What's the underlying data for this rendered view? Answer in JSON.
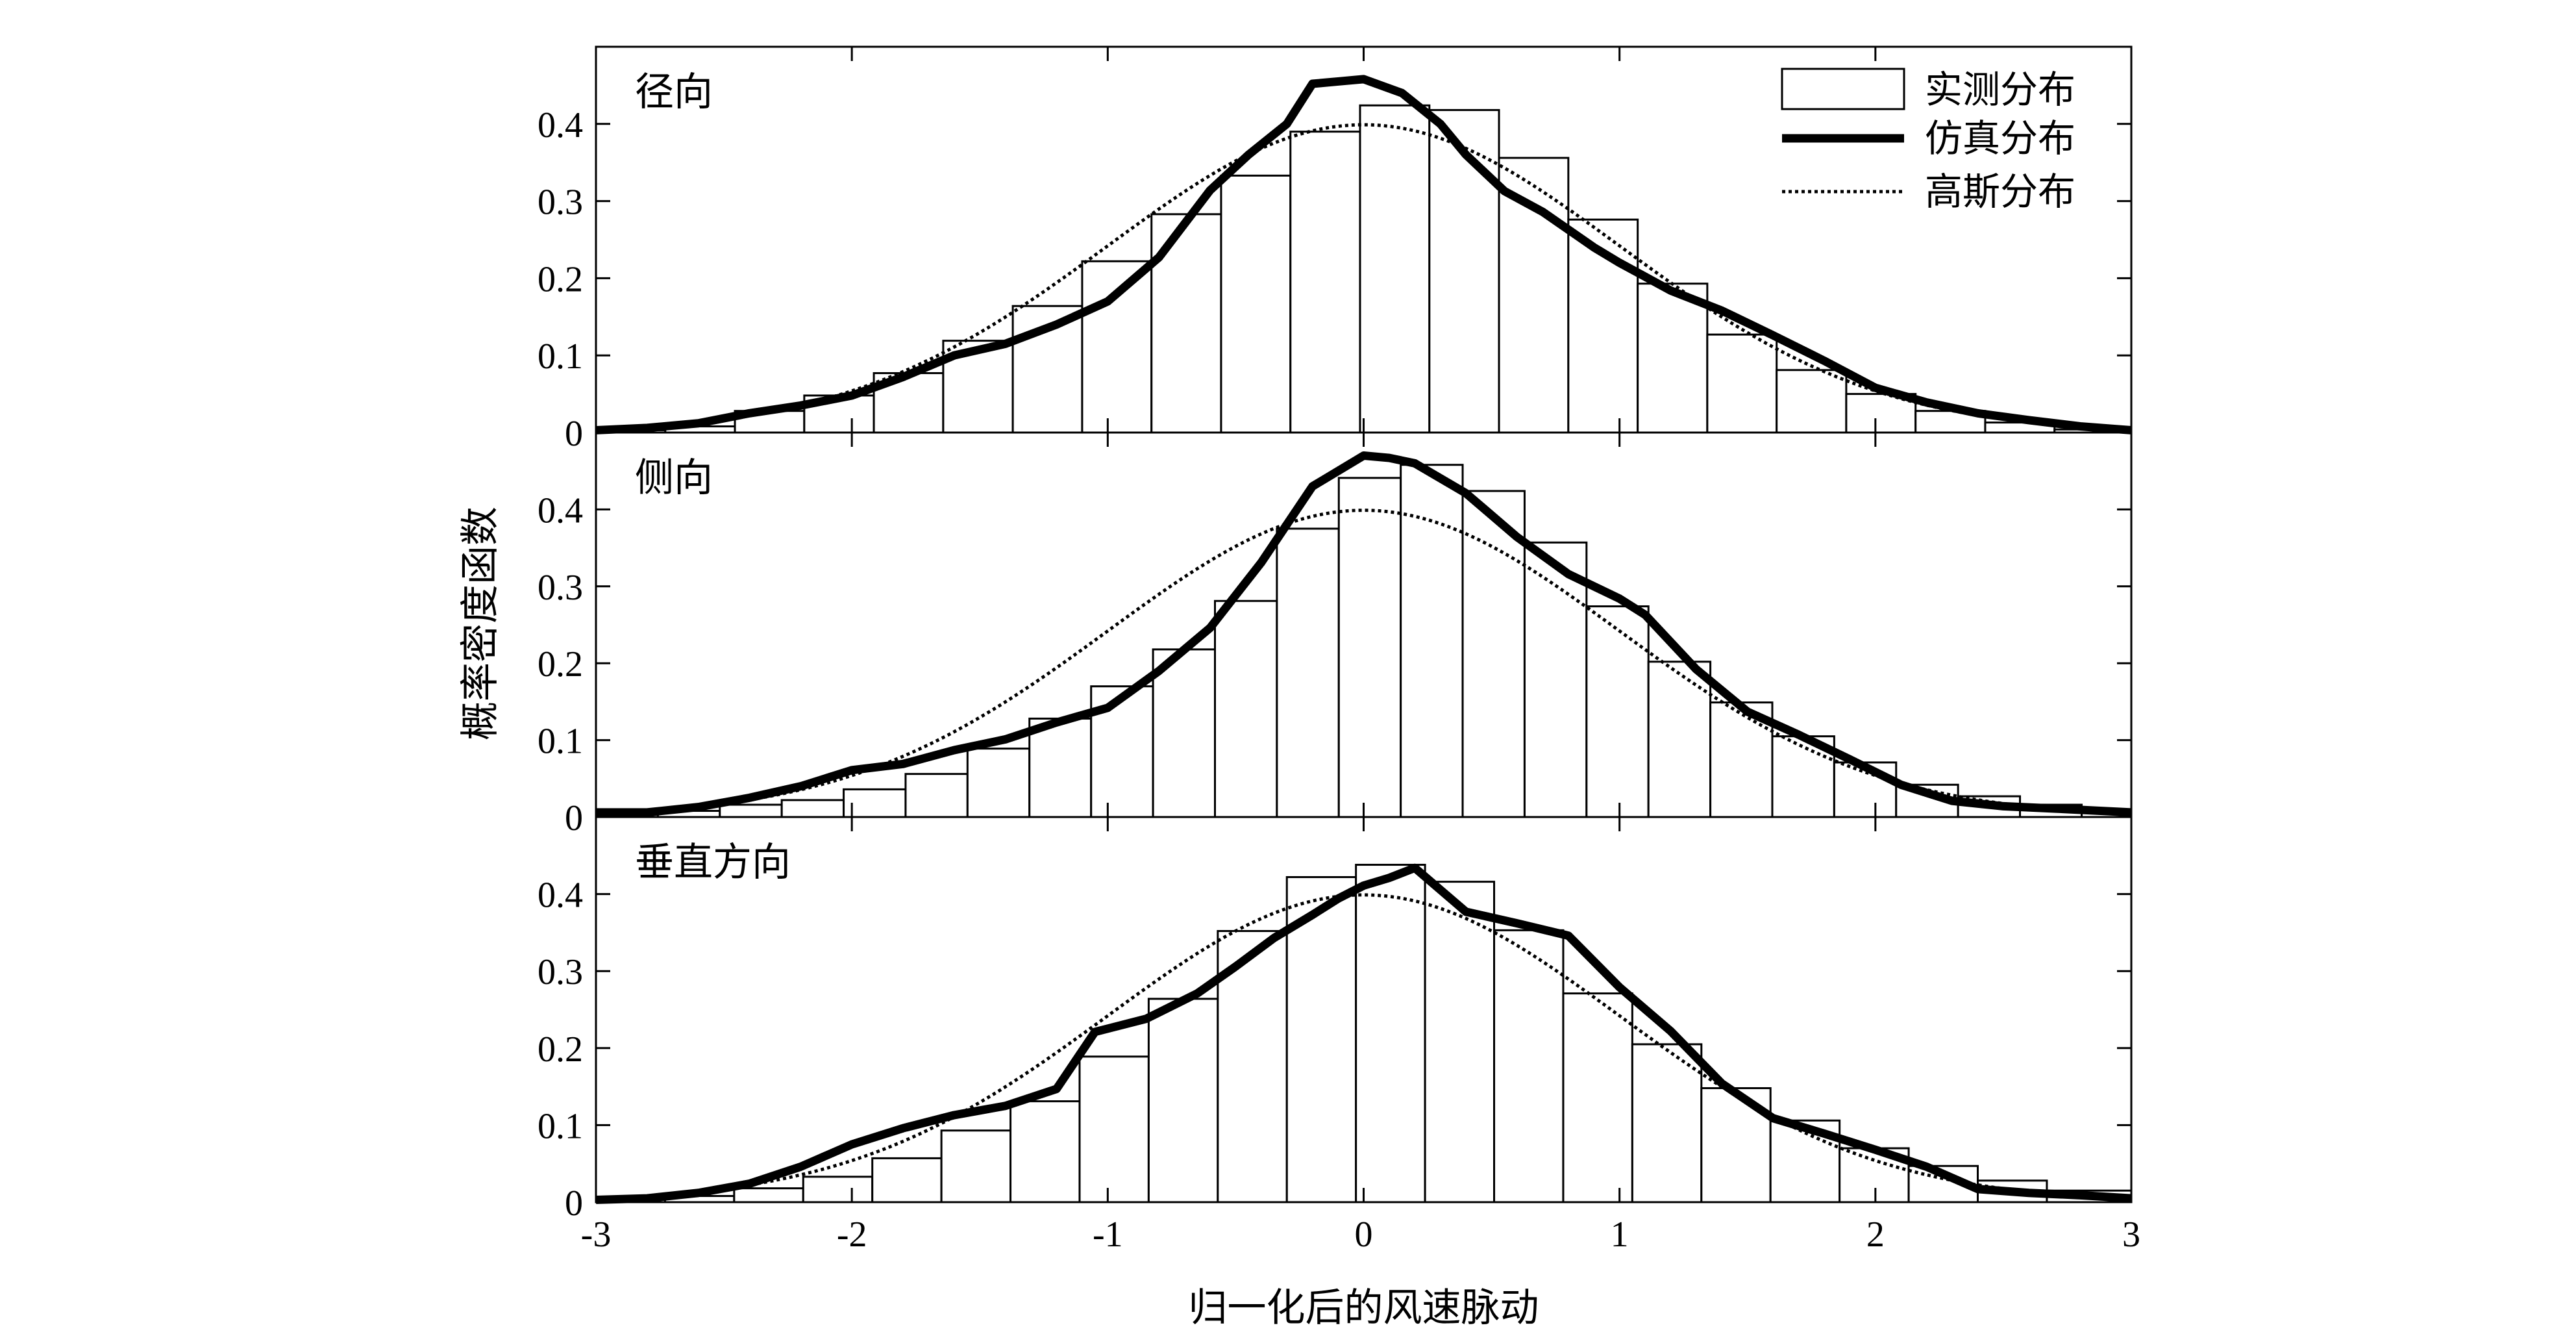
{
  "chart_data": {
    "type": "bar",
    "xlabel": "归一化后的风速脉动",
    "ylabel": "概率密度函数",
    "xlim": [
      -3,
      3
    ],
    "x_ticks": [
      "-3",
      "-2",
      "-1",
      "0",
      "1",
      "2",
      "3"
    ],
    "ylim": [
      0,
      0.5
    ],
    "y_ticks": [
      "0",
      "0.1",
      "0.2",
      "0.3",
      "0.4"
    ],
    "grid": false,
    "legend": {
      "placement": "top-right",
      "entries": [
        {
          "label": "实测分布",
          "style": "bar"
        },
        {
          "label": "仿真分布",
          "style": "thick-line"
        },
        {
          "label": "高斯分布",
          "style": "dotted-line"
        }
      ]
    },
    "panels": [
      {
        "title": "径向",
        "bins": {
          "x_start": [
            -3.0,
            -2.729,
            -2.457,
            -2.186,
            -1.914,
            -1.643,
            -1.371,
            -1.1,
            -0.829,
            -0.557,
            -0.286,
            -0.014,
            0.257,
            0.529,
            0.8,
            1.071,
            1.343,
            1.614,
            1.886,
            2.157,
            2.429,
            2.7
          ],
          "x_end": [
            -2.729,
            -2.457,
            -2.186,
            -1.914,
            -1.643,
            -1.371,
            -1.1,
            -0.829,
            -0.557,
            -0.286,
            -0.014,
            0.257,
            0.529,
            0.8,
            1.071,
            1.343,
            1.614,
            1.886,
            2.157,
            2.429,
            2.7,
            3.0
          ],
          "values": [
            0.003,
            0.008,
            0.028,
            0.048,
            0.077,
            0.119,
            0.164,
            0.222,
            0.283,
            0.333,
            0.39,
            0.424,
            0.418,
            0.356,
            0.276,
            0.193,
            0.127,
            0.081,
            0.05,
            0.028,
            0.013,
            0.004
          ]
        },
        "simulated": {
          "x": [
            -3.0,
            -2.8,
            -2.6,
            -2.4,
            -2.2,
            -2.0,
            -1.8,
            -1.6,
            -1.4,
            -1.2,
            -1.0,
            -0.8,
            -0.6,
            -0.45,
            -0.3,
            -0.2,
            -0.1,
            0.0,
            0.15,
            0.3,
            0.4,
            0.55,
            0.7,
            0.9,
            1.0,
            1.2,
            1.4,
            1.6,
            1.8,
            2.0,
            2.2,
            2.4,
            2.6,
            2.8,
            3.0
          ],
          "y": [
            0.003,
            0.006,
            0.012,
            0.025,
            0.035,
            0.048,
            0.072,
            0.1,
            0.115,
            0.14,
            0.17,
            0.227,
            0.314,
            0.36,
            0.4,
            0.452,
            0.455,
            0.458,
            0.44,
            0.4,
            0.36,
            0.313,
            0.286,
            0.24,
            0.22,
            0.184,
            0.158,
            0.126,
            0.093,
            0.058,
            0.039,
            0.025,
            0.016,
            0.008,
            0.003
          ]
        }
      },
      {
        "title": "侧向",
        "bins": {
          "x_start": [
            -3.0,
            -2.758,
            -2.516,
            -2.274,
            -2.032,
            -1.79,
            -1.548,
            -1.306,
            -1.065,
            -0.823,
            -0.581,
            -0.339,
            -0.097,
            0.145,
            0.387,
            0.629,
            0.871,
            1.113,
            1.355,
            1.597,
            1.839,
            2.081,
            2.323,
            2.565,
            2.806
          ],
          "x_end": [
            -2.758,
            -2.516,
            -2.274,
            -2.032,
            -1.79,
            -1.548,
            -1.306,
            -1.065,
            -0.823,
            -0.581,
            -0.339,
            -0.097,
            0.145,
            0.387,
            0.629,
            0.871,
            1.113,
            1.355,
            1.597,
            1.839,
            2.081,
            2.323,
            2.565,
            2.806,
            3.0
          ],
          "values": [
            0.004,
            0.008,
            0.016,
            0.022,
            0.036,
            0.056,
            0.089,
            0.128,
            0.17,
            0.218,
            0.281,
            0.375,
            0.441,
            0.458,
            0.424,
            0.357,
            0.274,
            0.202,
            0.149,
            0.105,
            0.071,
            0.042,
            0.027,
            0.016,
            0.008
          ]
        },
        "simulated": {
          "x": [
            -3.0,
            -2.8,
            -2.6,
            -2.4,
            -2.2,
            -2.0,
            -1.8,
            -1.6,
            -1.4,
            -1.2,
            -1.0,
            -0.8,
            -0.6,
            -0.4,
            -0.2,
            0.0,
            0.1,
            0.2,
            0.4,
            0.6,
            0.8,
            1.0,
            1.1,
            1.3,
            1.5,
            1.7,
            1.9,
            2.1,
            2.3,
            2.5,
            2.7,
            3.0
          ],
          "y": [
            0.006,
            0.006,
            0.013,
            0.025,
            0.04,
            0.061,
            0.069,
            0.087,
            0.101,
            0.123,
            0.142,
            0.19,
            0.246,
            0.331,
            0.43,
            0.47,
            0.467,
            0.46,
            0.421,
            0.364,
            0.316,
            0.284,
            0.263,
            0.192,
            0.137,
            0.107,
            0.075,
            0.042,
            0.021,
            0.014,
            0.011,
            0.006
          ]
        }
      },
      {
        "title": "垂直方向",
        "bins": {
          "x_start": [
            -3.0,
            -2.73,
            -2.46,
            -2.19,
            -1.92,
            -1.65,
            -1.38,
            -1.11,
            -0.84,
            -0.57,
            -0.3,
            -0.03,
            0.24,
            0.51,
            0.78,
            1.05,
            1.32,
            1.59,
            1.86,
            2.13,
            2.4,
            2.67
          ],
          "x_end": [
            -2.73,
            -2.46,
            -2.19,
            -1.92,
            -1.65,
            -1.38,
            -1.11,
            -0.84,
            -0.57,
            -0.3,
            -0.03,
            0.24,
            0.51,
            0.78,
            1.05,
            1.32,
            1.59,
            1.86,
            2.13,
            2.4,
            2.67,
            3.0
          ],
          "values": [
            0.003,
            0.008,
            0.018,
            0.033,
            0.057,
            0.093,
            0.131,
            0.189,
            0.264,
            0.352,
            0.422,
            0.438,
            0.416,
            0.353,
            0.271,
            0.205,
            0.148,
            0.106,
            0.07,
            0.047,
            0.028,
            0.015
          ]
        },
        "simulated": {
          "x": [
            -3.0,
            -2.8,
            -2.6,
            -2.4,
            -2.2,
            -2.0,
            -1.8,
            -1.6,
            -1.4,
            -1.2,
            -1.05,
            -0.85,
            -0.65,
            -0.5,
            -0.35,
            -0.2,
            -0.1,
            0.0,
            0.1,
            0.2,
            0.4,
            0.6,
            0.8,
            1.0,
            1.2,
            1.4,
            1.6,
            1.8,
            2.0,
            2.2,
            2.4,
            2.6,
            2.8,
            3.0
          ],
          "y": [
            0.003,
            0.005,
            0.012,
            0.024,
            0.046,
            0.075,
            0.096,
            0.113,
            0.125,
            0.147,
            0.221,
            0.238,
            0.271,
            0.306,
            0.343,
            0.373,
            0.394,
            0.411,
            0.421,
            0.434,
            0.377,
            0.362,
            0.346,
            0.279,
            0.222,
            0.154,
            0.109,
            0.089,
            0.068,
            0.046,
            0.017,
            0.012,
            0.009,
            0.005
          ]
        }
      }
    ]
  }
}
